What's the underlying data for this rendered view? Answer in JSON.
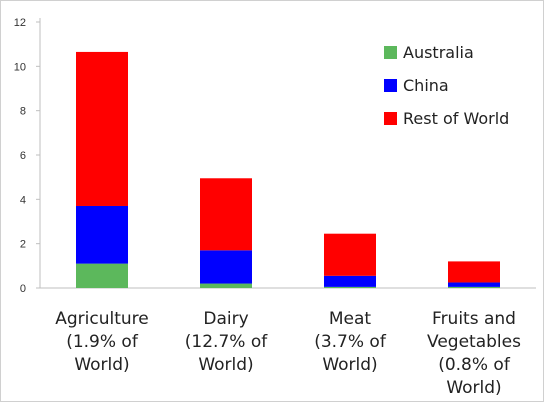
{
  "chart_data": {
    "type": "bar",
    "stacked": true,
    "title": "",
    "xlabel": "",
    "ylabel": "",
    "ylim": [
      0,
      12
    ],
    "yticks": [
      0,
      2,
      4,
      6,
      8,
      10,
      12
    ],
    "grid": false,
    "legend_position": "top-right",
    "categories": [
      [
        "Agriculture",
        "(1.9% of",
        "World)"
      ],
      [
        "Dairy",
        "(12.7% of",
        "World)"
      ],
      [
        "Meat",
        "(3.7% of",
        "World)"
      ],
      [
        "Fruits and",
        "Vegetables",
        "(0.8% of",
        "World)"
      ]
    ],
    "series": [
      {
        "name": "Australia",
        "color": "#5cb85c",
        "values": [
          1.1,
          0.2,
          0.05,
          0.05
        ]
      },
      {
        "name": "China",
        "color": "#0000ff",
        "values": [
          2.6,
          1.5,
          0.5,
          0.2
        ]
      },
      {
        "name": "Rest of World",
        "color": "#ff0000",
        "values": [
          6.95,
          3.25,
          1.9,
          0.95
        ]
      }
    ]
  }
}
